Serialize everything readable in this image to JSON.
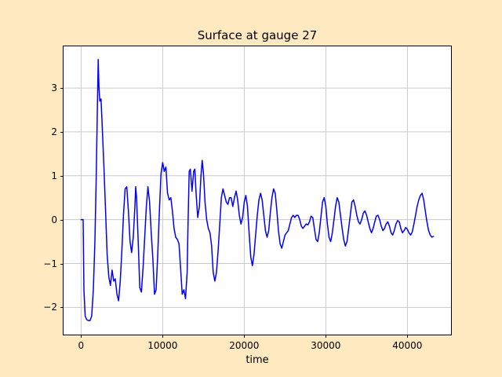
{
  "figure": {
    "background": "#ffe9c0"
  },
  "chart_data": {
    "type": "line",
    "title": "Surface at gauge 27",
    "xlabel": "time",
    "ylabel": "",
    "xlim": [
      -2150,
      45350
    ],
    "ylim": [
      -2.62,
      3.95
    ],
    "xticks": [
      0,
      10000,
      20000,
      30000,
      40000
    ],
    "yticks": [
      -2,
      -1,
      0,
      1,
      2,
      3
    ],
    "grid": true,
    "grid_color": "#c9c9c9",
    "plot_bg": "#ffffff",
    "frame_color": "#000000",
    "line_color": "#0000ff",
    "line_width": 1.5,
    "series_name": "surface-elevation",
    "points": [
      [
        0,
        0
      ],
      [
        250,
        0
      ],
      [
        350,
        -1.6
      ],
      [
        500,
        -2.2
      ],
      [
        700,
        -2.28
      ],
      [
        900,
        -2.3
      ],
      [
        1100,
        -2.3
      ],
      [
        1300,
        -2.2
      ],
      [
        1500,
        -1.6
      ],
      [
        1700,
        -0.5
      ],
      [
        1850,
        0.9
      ],
      [
        2000,
        2.6
      ],
      [
        2100,
        3.65
      ],
      [
        2200,
        3.0
      ],
      [
        2300,
        2.7
      ],
      [
        2450,
        2.75
      ],
      [
        2600,
        2.1
      ],
      [
        2800,
        1.2
      ],
      [
        3000,
        0.2
      ],
      [
        3200,
        -0.8
      ],
      [
        3400,
        -1.3
      ],
      [
        3600,
        -1.5
      ],
      [
        3800,
        -1.15
      ],
      [
        4000,
        -1.4
      ],
      [
        4200,
        -1.35
      ],
      [
        4400,
        -1.7
      ],
      [
        4600,
        -1.85
      ],
      [
        4800,
        -1.4
      ],
      [
        5000,
        -0.7
      ],
      [
        5200,
        0.1
      ],
      [
        5400,
        0.7
      ],
      [
        5600,
        0.75
      ],
      [
        5800,
        0.2
      ],
      [
        6000,
        -0.5
      ],
      [
        6200,
        -0.75
      ],
      [
        6400,
        -0.4
      ],
      [
        6600,
        0.3
      ],
      [
        6700,
        0.75
      ],
      [
        6800,
        0.5
      ],
      [
        7000,
        -0.5
      ],
      [
        7200,
        -1.55
      ],
      [
        7400,
        -1.65
      ],
      [
        7600,
        -1.1
      ],
      [
        7800,
        -0.4
      ],
      [
        8000,
        0.3
      ],
      [
        8200,
        0.75
      ],
      [
        8400,
        0.4
      ],
      [
        8600,
        -0.3
      ],
      [
        8800,
        -0.9
      ],
      [
        9000,
        -1.7
      ],
      [
        9200,
        -1.6
      ],
      [
        9400,
        -0.8
      ],
      [
        9600,
        0.2
      ],
      [
        9800,
        1.05
      ],
      [
        10000,
        1.3
      ],
      [
        10200,
        1.1
      ],
      [
        10400,
        1.2
      ],
      [
        10600,
        0.6
      ],
      [
        10800,
        0.45
      ],
      [
        11000,
        0.5
      ],
      [
        11200,
        0.2
      ],
      [
        11400,
        -0.2
      ],
      [
        11600,
        -0.4
      ],
      [
        11800,
        -0.45
      ],
      [
        12000,
        -0.55
      ],
      [
        12200,
        -1.1
      ],
      [
        12400,
        -1.7
      ],
      [
        12600,
        -1.6
      ],
      [
        12800,
        -1.8
      ],
      [
        13000,
        -1.2
      ],
      [
        13100,
        -0.2
      ],
      [
        13250,
        1.1
      ],
      [
        13400,
        1.15
      ],
      [
        13600,
        0.65
      ],
      [
        13800,
        1.1
      ],
      [
        13950,
        1.15
      ],
      [
        14100,
        0.6
      ],
      [
        14300,
        0.05
      ],
      [
        14500,
        0.3
      ],
      [
        14700,
        1.0
      ],
      [
        14850,
        1.35
      ],
      [
        15000,
        1.05
      ],
      [
        15200,
        0.4
      ],
      [
        15400,
        0
      ],
      [
        15600,
        -0.2
      ],
      [
        15800,
        -0.3
      ],
      [
        16000,
        -0.6
      ],
      [
        16200,
        -1.2
      ],
      [
        16400,
        -1.4
      ],
      [
        16600,
        -1.2
      ],
      [
        16800,
        -0.7
      ],
      [
        17000,
        -0.1
      ],
      [
        17200,
        0.5
      ],
      [
        17400,
        0.7
      ],
      [
        17600,
        0.55
      ],
      [
        17800,
        0.4
      ],
      [
        18000,
        0.35
      ],
      [
        18200,
        0.5
      ],
      [
        18400,
        0.5
      ],
      [
        18600,
        0.3
      ],
      [
        18800,
        0.5
      ],
      [
        19000,
        0.65
      ],
      [
        19200,
        0.45
      ],
      [
        19400,
        0.1
      ],
      [
        19600,
        -0.1
      ],
      [
        19800,
        0.05
      ],
      [
        20000,
        0.4
      ],
      [
        20200,
        0.55
      ],
      [
        20400,
        0.3
      ],
      [
        20600,
        -0.3
      ],
      [
        20800,
        -0.85
      ],
      [
        21000,
        -1.05
      ],
      [
        21200,
        -0.8
      ],
      [
        21400,
        -0.35
      ],
      [
        21600,
        0.1
      ],
      [
        21800,
        0.45
      ],
      [
        22000,
        0.6
      ],
      [
        22200,
        0.45
      ],
      [
        22400,
        0.1
      ],
      [
        22600,
        -0.25
      ],
      [
        22800,
        -0.4
      ],
      [
        23000,
        -0.25
      ],
      [
        23200,
        0.15
      ],
      [
        23400,
        0.5
      ],
      [
        23600,
        0.7
      ],
      [
        23800,
        0.6
      ],
      [
        24000,
        0.2
      ],
      [
        24200,
        -0.25
      ],
      [
        24400,
        -0.55
      ],
      [
        24600,
        -0.65
      ],
      [
        24800,
        -0.5
      ],
      [
        25000,
        -0.35
      ],
      [
        25200,
        -0.3
      ],
      [
        25400,
        -0.25
      ],
      [
        25600,
        -0.1
      ],
      [
        25800,
        0.05
      ],
      [
        26000,
        0.1
      ],
      [
        26200,
        0.05
      ],
      [
        26400,
        0.1
      ],
      [
        26600,
        0.1
      ],
      [
        26800,
        0
      ],
      [
        27000,
        -0.15
      ],
      [
        27200,
        -0.2
      ],
      [
        27400,
        -0.15
      ],
      [
        27600,
        -0.1
      ],
      [
        27800,
        -0.12
      ],
      [
        28000,
        -0.05
      ],
      [
        28200,
        0.08
      ],
      [
        28400,
        0.05
      ],
      [
        28600,
        -0.2
      ],
      [
        28800,
        -0.45
      ],
      [
        29000,
        -0.5
      ],
      [
        29200,
        -0.3
      ],
      [
        29400,
        0.05
      ],
      [
        29600,
        0.4
      ],
      [
        29800,
        0.5
      ],
      [
        30000,
        0.3
      ],
      [
        30200,
        -0.1
      ],
      [
        30400,
        -0.4
      ],
      [
        30600,
        -0.5
      ],
      [
        30800,
        -0.3
      ],
      [
        31000,
        0
      ],
      [
        31200,
        0.3
      ],
      [
        31400,
        0.5
      ],
      [
        31600,
        0.4
      ],
      [
        31800,
        0.1
      ],
      [
        32000,
        -0.2
      ],
      [
        32200,
        -0.45
      ],
      [
        32400,
        -0.6
      ],
      [
        32600,
        -0.5
      ],
      [
        32800,
        -0.2
      ],
      [
        33000,
        0.1
      ],
      [
        33200,
        0.4
      ],
      [
        33400,
        0.45
      ],
      [
        33600,
        0.3
      ],
      [
        33800,
        0.1
      ],
      [
        34000,
        -0.05
      ],
      [
        34200,
        -0.1
      ],
      [
        34400,
        0
      ],
      [
        34600,
        0.15
      ],
      [
        34800,
        0.2
      ],
      [
        35000,
        0.1
      ],
      [
        35200,
        -0.05
      ],
      [
        35400,
        -0.2
      ],
      [
        35600,
        -0.3
      ],
      [
        35800,
        -0.2
      ],
      [
        36000,
        -0.05
      ],
      [
        36200,
        0.08
      ],
      [
        36400,
        0.1
      ],
      [
        36600,
        0
      ],
      [
        36800,
        -0.15
      ],
      [
        37000,
        -0.25
      ],
      [
        37200,
        -0.2
      ],
      [
        37400,
        -0.1
      ],
      [
        37600,
        -0.05
      ],
      [
        37800,
        -0.15
      ],
      [
        38000,
        -0.3
      ],
      [
        38200,
        -0.35
      ],
      [
        38400,
        -0.25
      ],
      [
        38600,
        -0.1
      ],
      [
        38800,
        -0.02
      ],
      [
        39000,
        -0.05
      ],
      [
        39200,
        -0.2
      ],
      [
        39400,
        -0.3
      ],
      [
        39600,
        -0.25
      ],
      [
        39800,
        -0.18
      ],
      [
        40000,
        -0.22
      ],
      [
        40200,
        -0.3
      ],
      [
        40400,
        -0.35
      ],
      [
        40600,
        -0.28
      ],
      [
        40800,
        -0.1
      ],
      [
        41000,
        0.1
      ],
      [
        41200,
        0.3
      ],
      [
        41400,
        0.45
      ],
      [
        41600,
        0.55
      ],
      [
        41800,
        0.6
      ],
      [
        42000,
        0.45
      ],
      [
        42200,
        0.2
      ],
      [
        42400,
        -0.05
      ],
      [
        42600,
        -0.25
      ],
      [
        42800,
        -0.35
      ],
      [
        43000,
        -0.4
      ],
      [
        43200,
        -0.38
      ]
    ]
  }
}
